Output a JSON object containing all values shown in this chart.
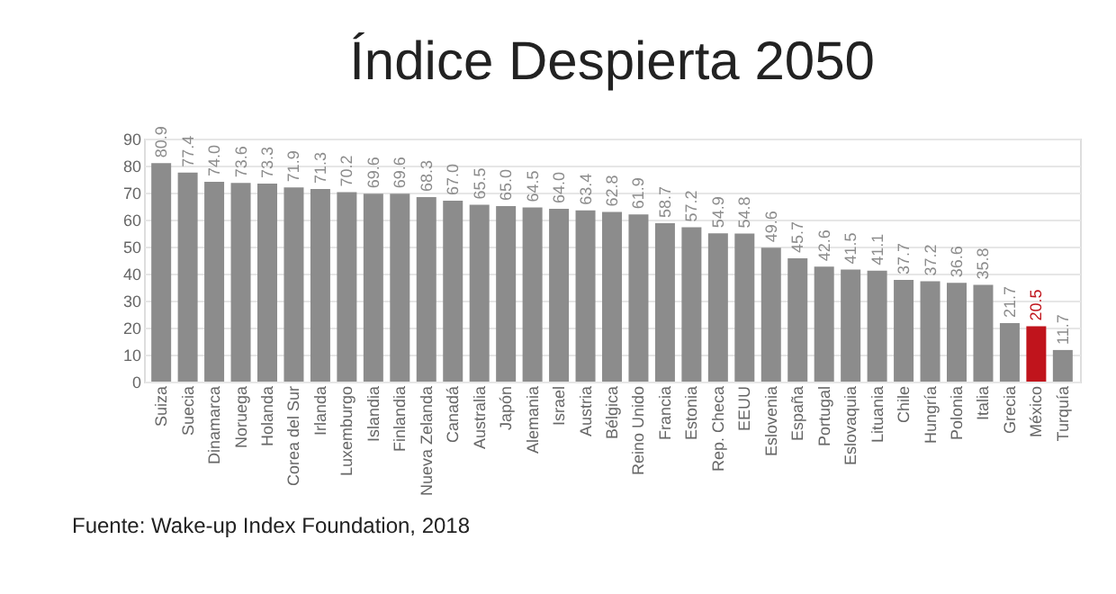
{
  "chart_data": {
    "type": "bar",
    "title": "Índice Despierta 2050",
    "categories": [
      "Suiza",
      "Suecia",
      "Dinamarca",
      "Noruega",
      "Holanda",
      "Corea del Sur",
      "Irlanda",
      "Luxemburgo",
      "Islandia",
      "Finlandia",
      "Nueva Zelanda",
      "Canadá",
      "Australia",
      "Japón",
      "Alemania",
      "Israel",
      "Austria",
      "Bélgica",
      "Reino Unido",
      "Francia",
      "Estonia",
      "Rep. Checa",
      "EEUU",
      "Eslovenia",
      "España",
      "Portugal",
      "Eslovaquia",
      "Lituania",
      "Chile",
      "Hungría",
      "Polonia",
      "Italia",
      "Grecia",
      "México",
      "Turquía"
    ],
    "values": [
      80.9,
      77.4,
      74.0,
      73.6,
      73.3,
      71.9,
      71.3,
      70.2,
      69.6,
      69.6,
      68.3,
      67.0,
      65.5,
      65.0,
      64.5,
      64.0,
      63.4,
      62.8,
      61.9,
      58.7,
      57.2,
      54.9,
      54.8,
      49.6,
      45.7,
      42.6,
      41.5,
      41.1,
      37.7,
      37.2,
      36.6,
      35.8,
      21.7,
      20.5,
      11.7
    ],
    "value_labels": [
      "80.9",
      "77.4",
      "74.0",
      "73.6",
      "73.3",
      "71.9",
      "71.3",
      "70.2",
      "69.6",
      "69.6",
      "68.3",
      "67.0",
      "65.5",
      "65.0",
      "64.5",
      "64.0",
      "63.4",
      "62.8",
      "61.9",
      "58.7",
      "57.2",
      "54.9",
      "54.8",
      "49.6",
      "45.7",
      "42.6",
      "41.5",
      "41.1",
      "37.7",
      "37.2",
      "36.6",
      "35.8",
      "21.7",
      "20.5",
      "11.7"
    ],
    "colors": [
      "#8c8c8c",
      "#8c8c8c",
      "#8c8c8c",
      "#8c8c8c",
      "#8c8c8c",
      "#8c8c8c",
      "#8c8c8c",
      "#8c8c8c",
      "#8c8c8c",
      "#8c8c8c",
      "#8c8c8c",
      "#8c8c8c",
      "#8c8c8c",
      "#8c8c8c",
      "#8c8c8c",
      "#8c8c8c",
      "#8c8c8c",
      "#8c8c8c",
      "#8c8c8c",
      "#8c8c8c",
      "#8c8c8c",
      "#8c8c8c",
      "#8c8c8c",
      "#8c8c8c",
      "#8c8c8c",
      "#8c8c8c",
      "#8c8c8c",
      "#8c8c8c",
      "#8c8c8c",
      "#8c8c8c",
      "#8c8c8c",
      "#8c8c8c",
      "#8c8c8c",
      "#c0141c",
      "#8c8c8c"
    ],
    "ylim": [
      0,
      90
    ],
    "yticks": [
      0,
      10,
      20,
      30,
      40,
      50,
      60,
      70,
      80,
      90
    ],
    "grid": "y",
    "annotations": [
      "Fuente: Wake-up Index Foundation, 2018"
    ]
  }
}
